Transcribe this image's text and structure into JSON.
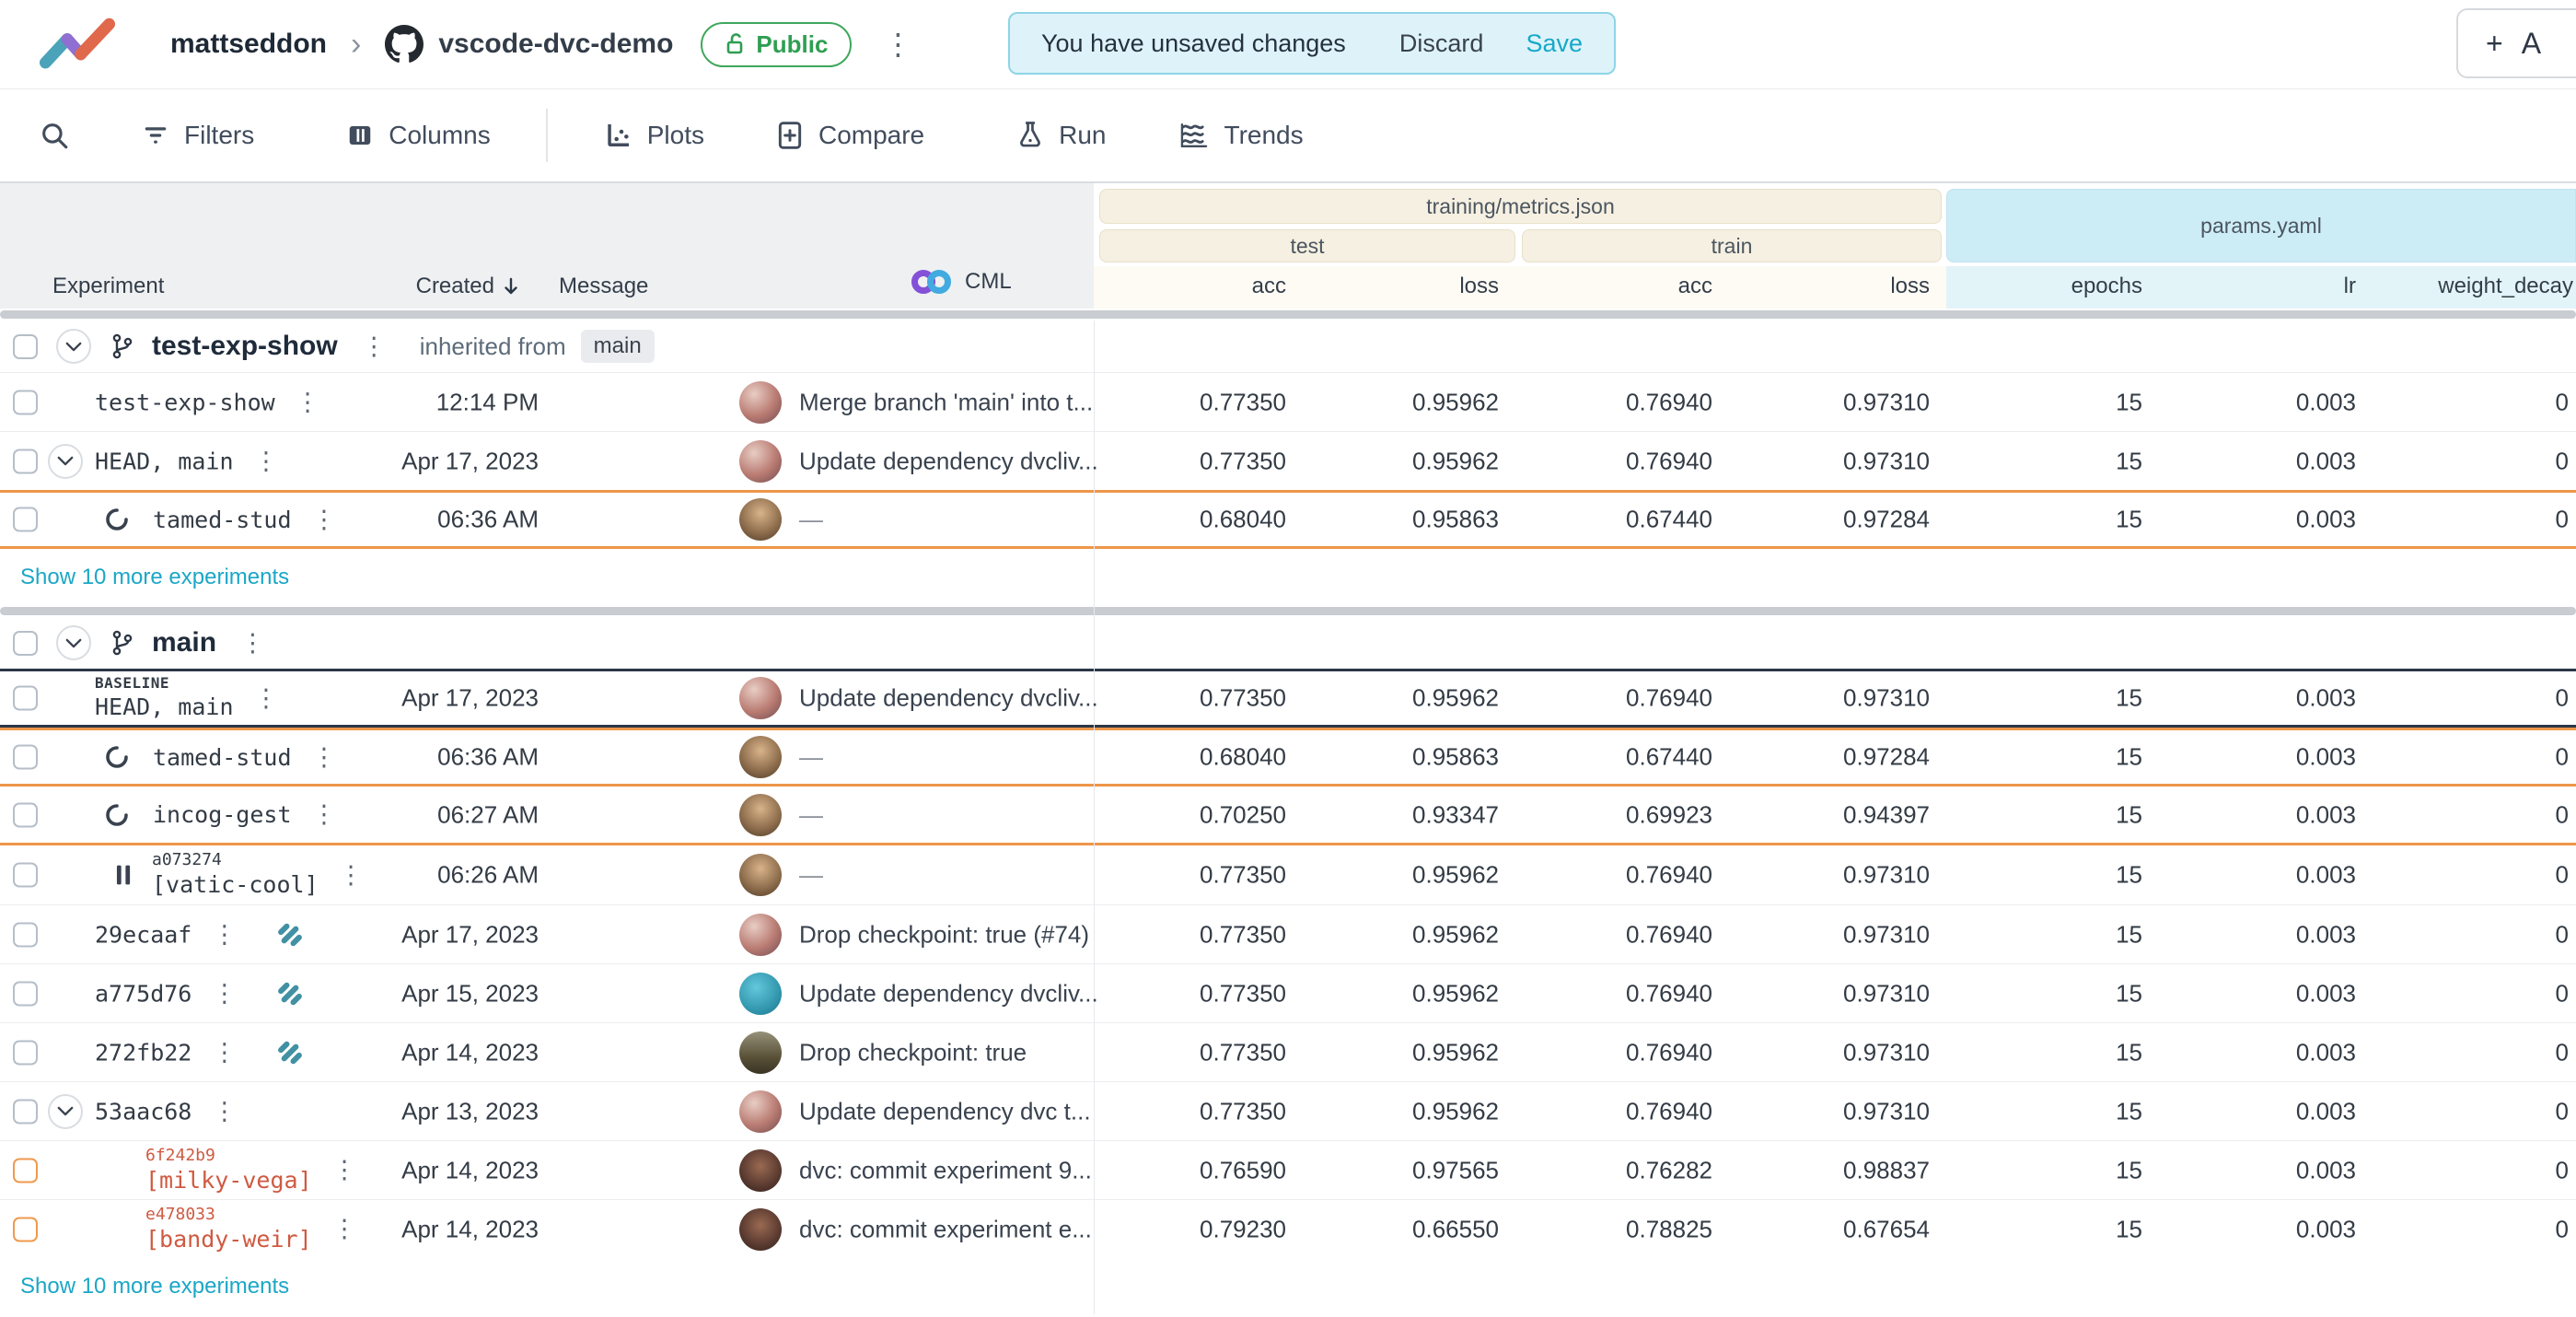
{
  "header": {
    "user": "mattseddon",
    "breadcrumb_sep": "›",
    "repo": "vscode-dvc-demo",
    "visibility_badge": "Public",
    "kebab_glyph": "⋮",
    "banner": {
      "message": "You have unsaved changes",
      "discard": "Discard",
      "save": "Save"
    },
    "add_button": {
      "plus": "+",
      "label": "A"
    }
  },
  "toolbar": {
    "filters": "Filters",
    "columns": "Columns",
    "plots": "Plots",
    "compare": "Compare",
    "run": "Run",
    "trends": "Trends"
  },
  "table": {
    "columns": {
      "experiment": "Experiment",
      "created": "Created",
      "message": "Message",
      "cml": "CML",
      "metrics_group": "training/metrics.json",
      "test_group": "test",
      "train_group": "train",
      "params_group": "params.yaml",
      "metric_cols": [
        "acc",
        "loss",
        "acc",
        "loss"
      ],
      "param_cols": [
        "epochs",
        "lr",
        "weight_decay"
      ]
    },
    "sections": [
      {
        "branch": "test-exp-show",
        "inherited_label": "inherited from",
        "inherited_from": "main",
        "show_more": "Show 10 more experiments",
        "rows": [
          {
            "name": "test-exp-show",
            "created": "12:14 PM",
            "avatar": "matt",
            "message": "Merge branch 'main' into t...",
            "values": [
              "0.77350",
              "0.95962",
              "0.76940",
              "0.97310",
              "15",
              "0.003",
              "0"
            ],
            "bt": "light"
          },
          {
            "name": "HEAD, main",
            "chevron": true,
            "created": "Apr 17, 2023",
            "avatar": "matt",
            "message": "Update dependency dvcliv...",
            "values": [
              "0.77350",
              "0.95962",
              "0.76940",
              "0.97310",
              "15",
              "0.003",
              "0"
            ],
            "bt": "light"
          },
          {
            "name": "tamed-stud",
            "status": "running",
            "created": "06:36 AM",
            "avatar": "face",
            "message": "—",
            "values": [
              "0.68040",
              "0.95863",
              "0.67440",
              "0.97284",
              "15",
              "0.003",
              "0"
            ],
            "bt": "orange",
            "bb": "orange"
          }
        ]
      },
      {
        "branch": "main",
        "show_more": "Show 10 more experiments",
        "rows": [
          {
            "tag": "BASELINE",
            "tag_style": "baseline",
            "name": "HEAD, main",
            "created": "Apr 17, 2023",
            "avatar": "matt",
            "message": "Update dependency dvcliv...",
            "values": [
              "0.77350",
              "0.95962",
              "0.76940",
              "0.97310",
              "15",
              "0.003",
              "0"
            ],
            "bt": "dark",
            "bb": "dark"
          },
          {
            "name": "tamed-stud",
            "status": "running",
            "created": "06:36 AM",
            "avatar": "face",
            "message": "—",
            "values": [
              "0.68040",
              "0.95863",
              "0.67440",
              "0.97284",
              "15",
              "0.003",
              "0"
            ],
            "bt": "orange",
            "bb": "orange"
          },
          {
            "name": "incog-gest",
            "status": "running",
            "created": "06:27 AM",
            "avatar": "face",
            "message": "—",
            "values": [
              "0.70250",
              "0.93347",
              "0.69923",
              "0.94397",
              "15",
              "0.003",
              "0"
            ],
            "bt": "none",
            "bb": "orange"
          },
          {
            "tag": "a073274",
            "name": "[vatic-cool]",
            "status": "paused",
            "created": "06:26 AM",
            "avatar": "face",
            "message": "—",
            "values": [
              "0.77350",
              "0.95962",
              "0.76940",
              "0.97310",
              "15",
              "0.003",
              "0"
            ],
            "bt": "none"
          },
          {
            "name": "29ecaaf",
            "dvc": true,
            "created": "Apr 17, 2023",
            "avatar": "matt",
            "message": "Drop checkpoint: true (#74)",
            "values": [
              "0.77350",
              "0.95962",
              "0.76940",
              "0.97310",
              "15",
              "0.003",
              "0"
            ],
            "bt": "light"
          },
          {
            "name": "a775d76",
            "dvc": true,
            "created": "Apr 15, 2023",
            "avatar": "renovate",
            "message": "Update dependency dvcliv...",
            "values": [
              "0.77350",
              "0.95962",
              "0.76940",
              "0.97310",
              "15",
              "0.003",
              "0"
            ],
            "bt": "light"
          },
          {
            "name": "272fb22",
            "dvc": true,
            "created": "Apr 14, 2023",
            "avatar": "field",
            "message": "Drop checkpoint: true",
            "values": [
              "0.77350",
              "0.95962",
              "0.76940",
              "0.97310",
              "15",
              "0.003",
              "0"
            ],
            "bt": "light"
          },
          {
            "name": "53aac68",
            "chevron": true,
            "created": "Apr 13, 2023",
            "avatar": "matt",
            "message": "Update dependency dvc t...",
            "values": [
              "0.77350",
              "0.95962",
              "0.76940",
              "0.97310",
              "15",
              "0.003",
              "0"
            ],
            "bt": "light"
          },
          {
            "tag": "6f242b9",
            "name": "[milky-vega]",
            "nested": true,
            "created": "Apr 14, 2023",
            "avatar": "dark",
            "message": "dvc: commit experiment 9...",
            "values": [
              "0.76590",
              "0.97565",
              "0.76282",
              "0.98837",
              "15",
              "0.003",
              "0"
            ],
            "bt": "light"
          },
          {
            "tag": "e478033",
            "name": "[bandy-weir]",
            "nested": true,
            "created": "Apr 14, 2023",
            "avatar": "dark",
            "message": "dvc: commit experiment e...",
            "values": [
              "0.79230",
              "0.66550",
              "0.78825",
              "0.67654",
              "15",
              "0.003",
              "0"
            ],
            "bt": "light"
          }
        ]
      }
    ]
  },
  "glyphs": {
    "kebab": "⋮",
    "em_dash": "—"
  },
  "colors": {
    "accent_teal": "#16a9c9",
    "running_orange": "#ee9649",
    "baseline_navy": "#2b3747",
    "nested_orange_text": "#cf5a41",
    "metrics_band": "#f5f0e1",
    "params_band": "#cdedf6",
    "public_green": "#2f9e52"
  }
}
